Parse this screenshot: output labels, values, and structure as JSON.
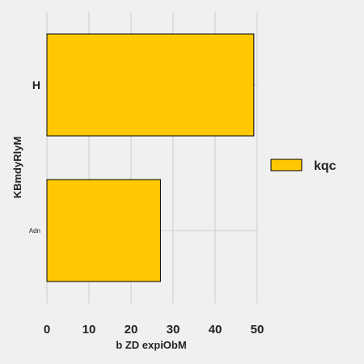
{
  "chart_data": {
    "type": "bar",
    "orientation": "horizontal",
    "categories": [
      "H",
      "Adn"
    ],
    "series": [
      {
        "name": "kqc",
        "values": [
          49.2,
          27
        ],
        "color": "#ffc800"
      }
    ],
    "xlabel": "b ZD expiObM",
    "ylabel": "KBmdyRlyM",
    "xlim": [
      0,
      50
    ],
    "xticks": [
      0,
      10,
      20,
      30,
      40,
      50
    ],
    "grid": true,
    "legend_position": "right"
  }
}
